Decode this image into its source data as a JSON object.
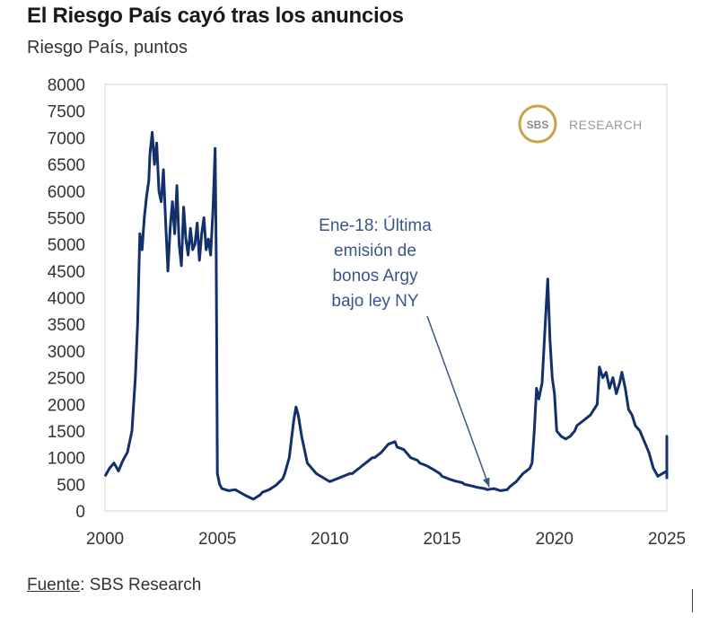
{
  "title": "El Riesgo País cayó tras los anuncios",
  "subtitle": "Riesgo País, puntos",
  "source_label": "Fuente",
  "source_sep": ":",
  "source_text": " SBS Research",
  "logo": {
    "badge": "SBS",
    "text": "RESEARCH"
  },
  "colors": {
    "line": "#14306b",
    "frame": "#d4d4d4",
    "annotation": "#3a5588",
    "logo_gold": "#c9a24a",
    "logo_text": "#9a9a9a"
  },
  "annotation": {
    "lines": [
      "Ene-18: Última",
      "emisión de",
      "bonos Argy",
      "bajo ley NY"
    ],
    "target": {
      "x": 2017.1,
      "y": 380
    }
  },
  "chart_data": {
    "type": "line",
    "title": "El Riesgo País cayó tras los anuncios",
    "ylabel": "Riesgo País, puntos",
    "xlabel": "",
    "xlim": [
      2000,
      2025
    ],
    "ylim": [
      0,
      8000
    ],
    "xticks": [
      2000,
      2005,
      2010,
      2015,
      2020,
      2025
    ],
    "yticks": [
      0,
      500,
      1000,
      1500,
      2000,
      2500,
      3000,
      3500,
      4000,
      4500,
      5000,
      5500,
      6000,
      6500,
      7000,
      7500,
      8000
    ],
    "grid": false,
    "series": [
      {
        "x": [
          2000.0,
          2000.2,
          2000.4,
          2000.6,
          2000.8,
          2001.0,
          2001.2,
          2001.35,
          2001.45,
          2001.55,
          2001.65,
          2001.75,
          2001.85,
          2001.95,
          2002.0,
          2002.1,
          2002.2,
          2002.3,
          2002.4,
          2002.5,
          2002.6,
          2002.7,
          2002.8,
          2002.9,
          2003.0,
          2003.1,
          2003.2,
          2003.3,
          2003.4,
          2003.5,
          2003.6,
          2003.7,
          2003.8,
          2003.9,
          2004.0,
          2004.1,
          2004.2,
          2004.3,
          2004.4,
          2004.5,
          2004.6,
          2004.7,
          2004.8,
          2004.9,
          2004.95,
          2005.0,
          2005.1,
          2005.2,
          2005.5,
          2005.8,
          2006.0,
          2006.3,
          2006.6,
          2006.9,
          2007.0,
          2007.3,
          2007.6,
          2007.9,
          2008.0,
          2008.2,
          2008.4,
          2008.5,
          2008.6,
          2008.75,
          2008.9,
          2009.0,
          2009.2,
          2009.4,
          2009.6,
          2009.8,
          2010.0,
          2010.3,
          2010.6,
          2010.9,
          2011.0,
          2011.3,
          2011.6,
          2011.9,
          2012.0,
          2012.3,
          2012.6,
          2012.9,
          2013.0,
          2013.3,
          2013.6,
          2013.9,
          2014.0,
          2014.3,
          2014.6,
          2014.9,
          2015.0,
          2015.3,
          2015.6,
          2015.9,
          2016.0,
          2016.3,
          2016.6,
          2016.9,
          2017.0,
          2017.3,
          2017.6,
          2017.9,
          2018.0,
          2018.3,
          2018.6,
          2018.9,
          2019.0,
          2019.1,
          2019.2,
          2019.3,
          2019.45,
          2019.6,
          2019.7,
          2019.8,
          2019.9,
          2020.0,
          2020.1,
          2020.3,
          2020.5,
          2020.7,
          2020.9,
          2021.0,
          2021.3,
          2021.6,
          2021.9,
          2022.0,
          2022.15,
          2022.3,
          2022.45,
          2022.6,
          2022.75,
          2022.9,
          2023.0,
          2023.15,
          2023.3,
          2023.45,
          2023.6,
          2023.8,
          2024.0,
          2024.2,
          2024.4,
          2024.6,
          2024.8,
          2025.0,
          2025.2,
          2025.3,
          2025.4
        ],
        "values": [
          650,
          800,
          900,
          750,
          950,
          1100,
          1500,
          2500,
          3500,
          5200,
          4900,
          5500,
          5900,
          6200,
          6700,
          7100,
          6500,
          6900,
          6000,
          5800,
          6400,
          5400,
          4500,
          5300,
          5800,
          5200,
          6100,
          5000,
          4600,
          5700,
          5100,
          4800,
          5300,
          4900,
          5000,
          5400,
          4700,
          5200,
          5500,
          4900,
          5100,
          4800,
          5600,
          6800,
          4800,
          700,
          500,
          420,
          380,
          400,
          350,
          280,
          220,
          300,
          350,
          400,
          480,
          600,
          700,
          1000,
          1700,
          1950,
          1800,
          1400,
          1100,
          900,
          800,
          700,
          650,
          600,
          550,
          600,
          650,
          700,
          700,
          800,
          900,
          1000,
          1000,
          1100,
          1250,
          1300,
          1200,
          1150,
          1000,
          950,
          900,
          850,
          780,
          700,
          650,
          600,
          560,
          530,
          500,
          470,
          440,
          420,
          400,
          420,
          380,
          400,
          450,
          550,
          700,
          800,
          900,
          1500,
          2300,
          2100,
          2400,
          3600,
          4350,
          3200,
          2500,
          2200,
          1500,
          1400,
          1350,
          1400,
          1500,
          1600,
          1700,
          1800,
          2000,
          2700,
          2500,
          2600,
          2300,
          2500,
          2200,
          2400,
          2600,
          2300,
          1900,
          1800,
          1600,
          1500,
          1300,
          1100,
          800,
          650,
          700,
          750,
          1400,
          650,
          600
        ]
      }
    ]
  }
}
